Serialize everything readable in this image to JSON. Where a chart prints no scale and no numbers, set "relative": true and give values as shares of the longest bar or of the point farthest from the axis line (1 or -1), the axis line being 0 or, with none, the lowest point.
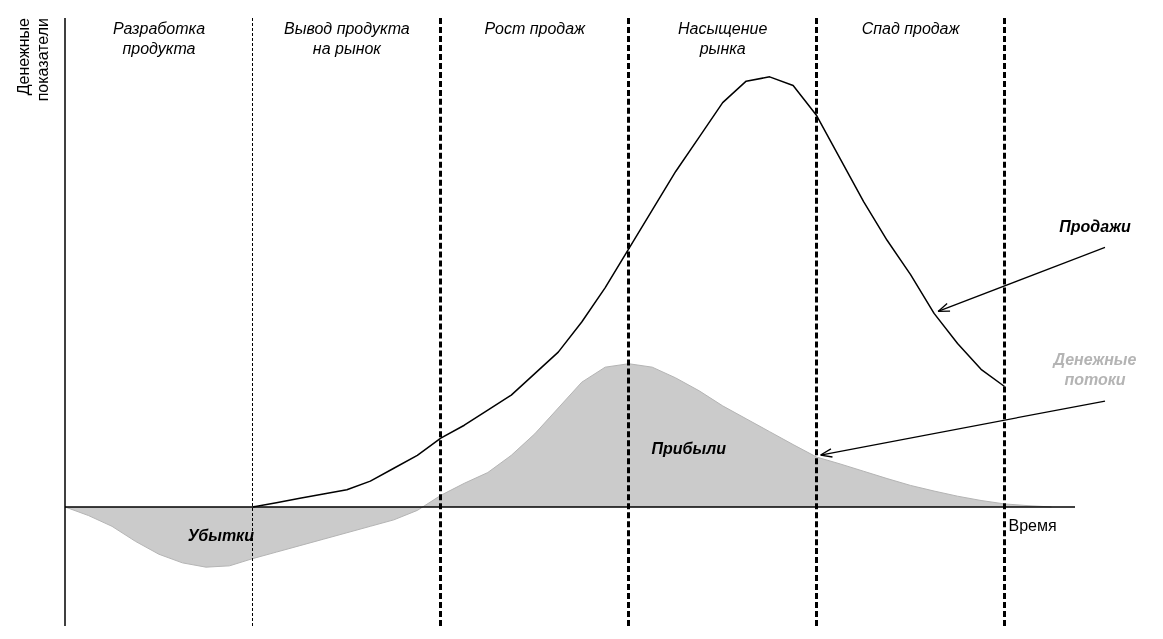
{
  "chart_data": {
    "type": "line",
    "relative": true,
    "xlabel": "Время",
    "ylabel": "Денежные показатели",
    "marker": "none",
    "grid": "x",
    "categories": [
      null,
      null,
      null,
      null,
      null,
      null,
      null,
      null,
      null,
      null,
      null,
      null,
      null,
      null,
      null,
      null,
      null,
      null,
      null,
      null,
      null,
      null,
      null,
      null,
      null,
      null,
      null,
      null,
      null,
      null,
      null,
      null,
      null,
      null,
      null,
      null,
      null,
      null,
      null,
      null,
      null,
      null,
      null,
      null
    ],
    "series": [
      {
        "name": "Продажи",
        "color": "#000000",
        "values": [
          null,
          null,
          null,
          null,
          null,
          null,
          null,
          null,
          0,
          0.01,
          0.02,
          0.03,
          0.04,
          0.06,
          0.09,
          0.12,
          0.16,
          0.19,
          0.225,
          0.26,
          0.31,
          0.36,
          0.43,
          0.51,
          0.6,
          0.69,
          0.78,
          0.86,
          0.94,
          0.99,
          1.0,
          0.98,
          0.91,
          0.81,
          0.71,
          0.62,
          0.54,
          0.45,
          0.38,
          0.32,
          0.28,
          null,
          null,
          null
        ]
      },
      {
        "name": "Денежные потоки",
        "type": "area",
        "color": "#b4b4b4",
        "values": [
          0,
          -0.02,
          -0.045,
          -0.08,
          -0.11,
          -0.13,
          -0.14,
          -0.137,
          -0.12,
          -0.105,
          -0.09,
          -0.075,
          -0.06,
          -0.045,
          -0.03,
          -0.008,
          0.027,
          0.055,
          0.08,
          0.12,
          0.17,
          0.23,
          0.29,
          0.325,
          0.333,
          0.325,
          0.3,
          0.27,
          0.235,
          0.205,
          0.175,
          0.145,
          0.116,
          0.1,
          0.083,
          0.066,
          0.05,
          0.037,
          0.025,
          0.015,
          0.007,
          0.003,
          0,
          null
        ]
      }
    ],
    "annotations": [
      "Разработка продукта",
      "Вывод продукта на рынок",
      "Рост продаж",
      "Насыщение рынка",
      "Спад продаж",
      "Убытки",
      "Прибыли"
    ]
  }
}
